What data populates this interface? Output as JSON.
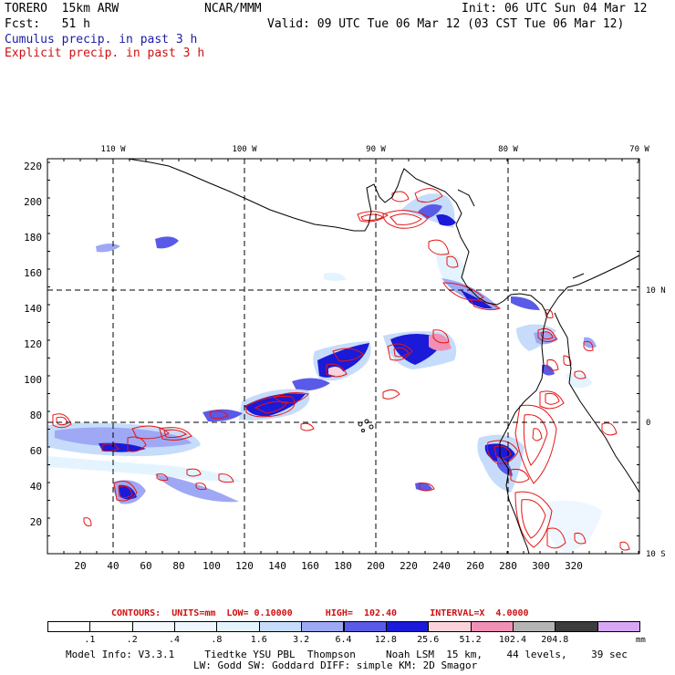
{
  "header": {
    "model": "TORERO  15km ARW",
    "org": "NCAR/MMM",
    "init": "Init: 06 UTC Sun 04 Mar 12",
    "fcst": "Fcst:   51 h",
    "valid": "Valid: 09 UTC Tue 06 Mar 12 (03 CST Tue 06 Mar 12)",
    "cumulus": "Cumulus precip. in past 3 h",
    "explicit": "Explicit precip. in past 3 h"
  },
  "map": {
    "lon_labels": [
      "110 W",
      "100 W",
      "90 W",
      "80 W",
      "70 W"
    ],
    "lat_labels": [
      "10 N",
      "0",
      "10 S"
    ],
    "x_ticks": [
      "20",
      "40",
      "60",
      "80",
      "100",
      "120",
      "140",
      "160",
      "180",
      "200",
      "220",
      "240",
      "260",
      "280",
      "300",
      "320"
    ],
    "y_ticks": [
      "20",
      "40",
      "60",
      "80",
      "100",
      "120",
      "140",
      "160",
      "180",
      "200",
      "220"
    ],
    "colors": {
      "coast": "#000000",
      "grid": "#000000",
      "cumulus": "#1414e6",
      "explicit": "#e61414"
    }
  },
  "legend": {
    "contours": "CONTOURS:  UNITS=mm  LOW= 0.10000      HIGH=  102.40      INTERVAL=X  4.0000",
    "labels": [
      ".1",
      ".2",
      ".4",
      ".8",
      "1.6",
      "3.2",
      "6.4",
      "12.8",
      "25.6",
      "51.2",
      "102.4",
      "204.8"
    ],
    "units": "mm",
    "colors": [
      "#ffffff",
      "#ffffff",
      "#f4f8ff",
      "#eef7ff",
      "#e4f4ff",
      "#c6dcfa",
      "#9ea8f4",
      "#5a5ae8",
      "#1a1ad8",
      "#fbd2da",
      "#f090b4",
      "#b4b4b4",
      "#3c3c3c",
      "#d6a8f4"
    ]
  },
  "footer": {
    "line1": "Model Info: V3.3.1     Tiedtke YSU PBL  Thompson     Noah LSM  15 km,    44 levels,    39 sec",
    "line2": "LW: Godd SW: Goddard DIFF: simple KM: 2D Smagor"
  }
}
